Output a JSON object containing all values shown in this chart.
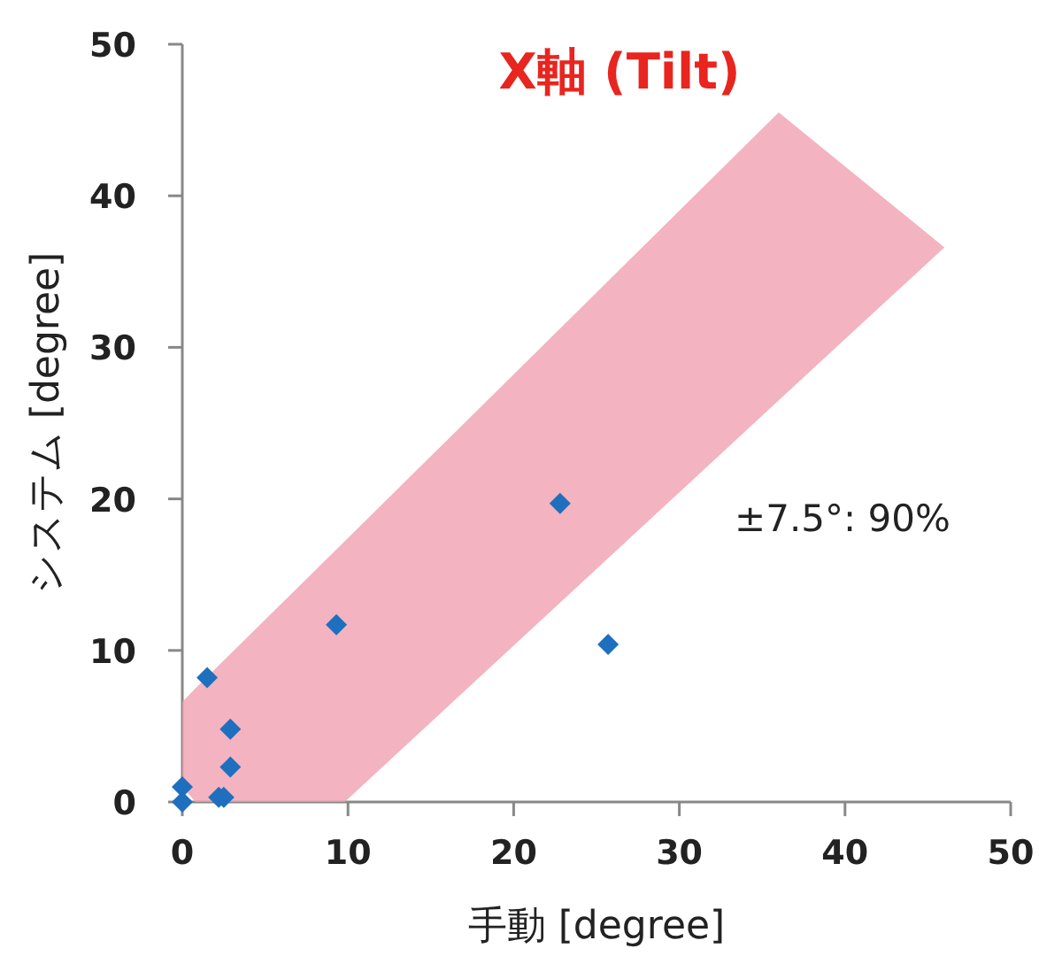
{
  "chart_data": {
    "type": "scatter",
    "title": "X軸 (Tilt)",
    "xlabel": "手動 [degree]",
    "ylabel": "システム [degree]",
    "xlim": [
      0,
      50
    ],
    "ylim": [
      0,
      50
    ],
    "xticks": [
      0,
      10,
      20,
      30,
      40,
      50
    ],
    "yticks": [
      0,
      10,
      20,
      30,
      40,
      50
    ],
    "marker": "diamond",
    "annotations": [
      "±7.5°: 90%"
    ],
    "series": [
      {
        "color": "#1f6fbf",
        "x": [
          0,
          0,
          1.5,
          2.9,
          2.9,
          2.2,
          2.5,
          9.3,
          22.8,
          25.7
        ],
        "values": [
          0,
          1.0,
          8.2,
          4.8,
          2.3,
          0.3,
          0.3,
          11.7,
          19.7,
          10.4
        ]
      },
      {
        "type": "area",
        "color": "#f0a0b0",
        "x": [
          0,
          0.8,
          9.8,
          36,
          46
        ],
        "values": [
          null,
          null,
          null,
          null,
          null
        ],
        "lower": [
          1.0,
          0,
          0,
          26.5,
          36.6
        ],
        "upper": [
          6.6,
          7.5,
          17.2,
          45.5,
          36.6
        ]
      }
    ]
  }
}
